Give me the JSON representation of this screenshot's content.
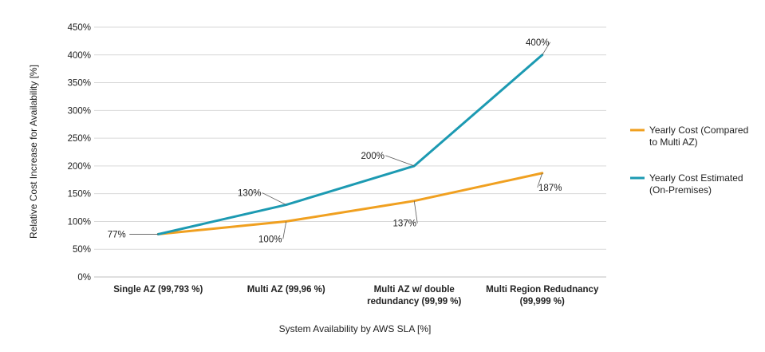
{
  "chart_data": {
    "type": "line",
    "xlabel": "System Availability by AWS SLA [%]",
    "ylabel": "Relative Cost Increase for Availability [%]",
    "ylim": [
      0,
      450
    ],
    "yticks": [
      "0%",
      "50%",
      "100%",
      "150%",
      "200%",
      "250%",
      "300%",
      "350%",
      "400%",
      "450%"
    ],
    "grid": true,
    "legend_position": "right",
    "categories": [
      [
        "Single AZ (99,793 %)"
      ],
      [
        "Multi AZ (99,96 %)"
      ],
      [
        "Multi AZ w/ double",
        "redundancy (99,99 %)"
      ],
      [
        "Multi Region Redudnancy",
        "(99,999 %)"
      ]
    ],
    "series": [
      {
        "name_lines": [
          "Yearly Cost (Compared",
          "to Multi AZ)"
        ],
        "color": "#F0A020",
        "values": [
          77,
          100,
          137,
          187
        ],
        "labels": [
          "",
          "100%",
          "137%",
          "187%"
        ]
      },
      {
        "name_lines": [
          "Yearly Cost Estimated",
          "(On-Premises)"
        ],
        "color": "#1C9AB2",
        "values": [
          77,
          130,
          200,
          400
        ],
        "labels": [
          "77%",
          "130%",
          "200%",
          "400%"
        ]
      }
    ]
  }
}
